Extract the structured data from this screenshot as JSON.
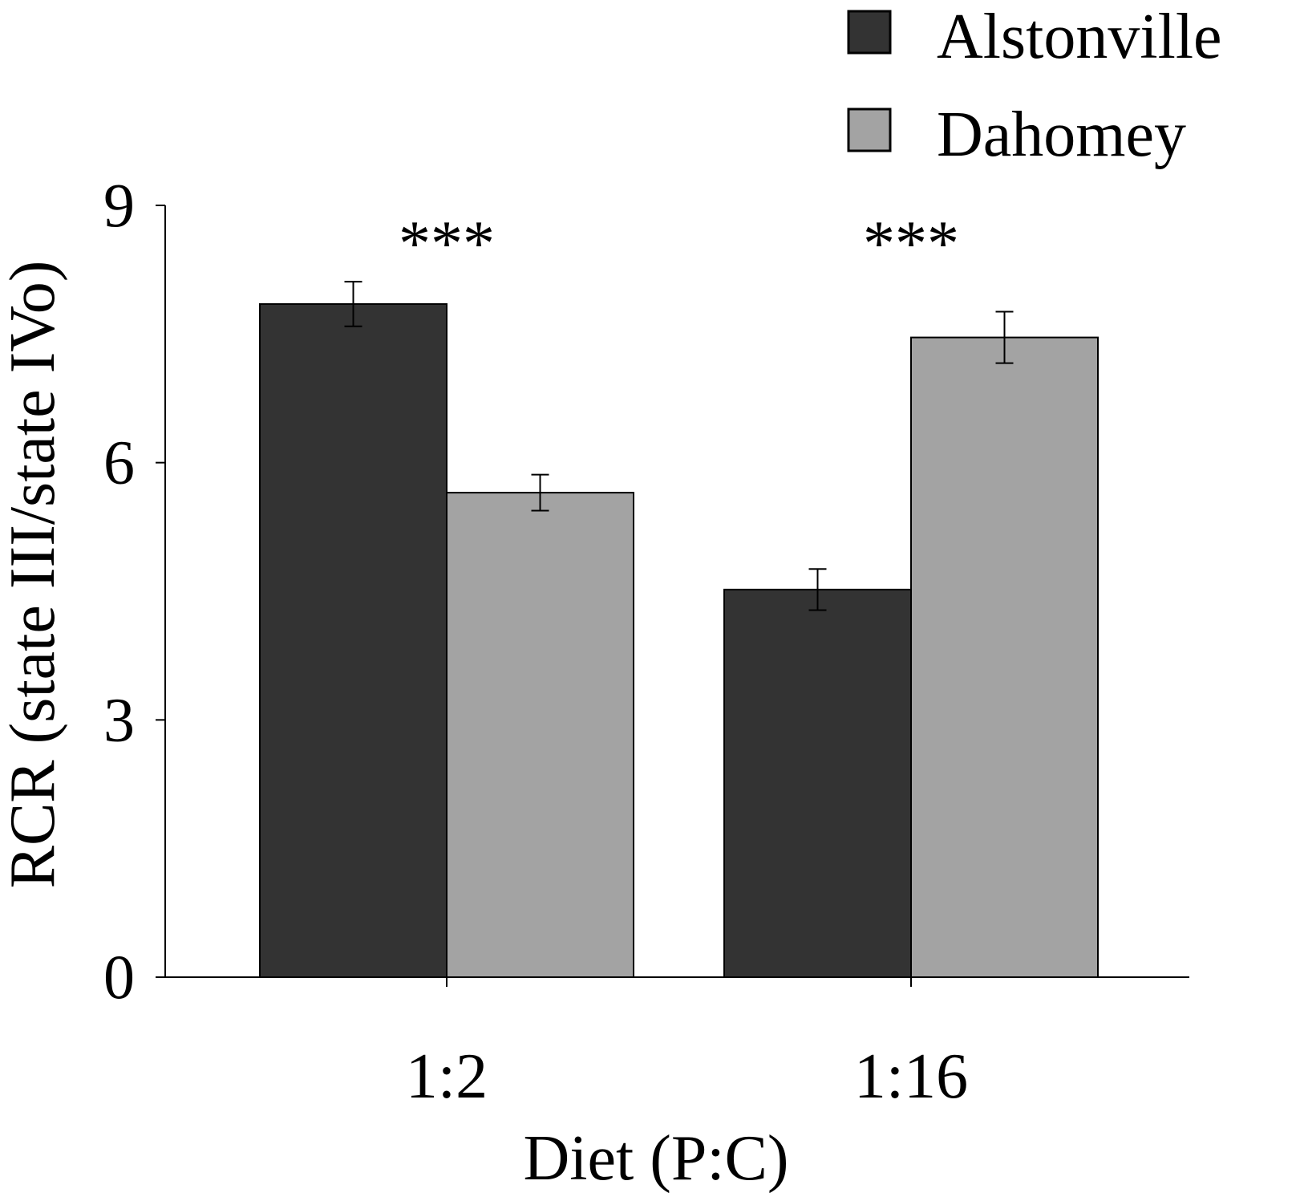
{
  "colors": {
    "alstonville": "#333333",
    "dahomey": "#a3a3a3",
    "axis": "#000000",
    "background": "#ffffff"
  },
  "chart_data": {
    "type": "bar",
    "title": "",
    "xlabel": "Diet (P:C)",
    "ylabel": "RCR (state III/state IVo)",
    "categories": [
      "1:2",
      "1:16"
    ],
    "ylim": [
      0,
      9
    ],
    "yticks": [
      0,
      3,
      6,
      9
    ],
    "ytick_labels": [
      "0",
      "3",
      "6",
      "9"
    ],
    "grid": false,
    "legend_position": "top-right",
    "series": [
      {
        "name": "Alstonville",
        "color": "#333333",
        "values": [
          7.85,
          4.52
        ],
        "errors": [
          0.26,
          0.24
        ]
      },
      {
        "name": "Dahomey",
        "color": "#a3a3a3",
        "values": [
          5.65,
          7.46
        ],
        "errors": [
          0.21,
          0.3
        ]
      }
    ],
    "annotations": [
      {
        "category": "1:2",
        "text": "***"
      },
      {
        "category": "1:16",
        "text": "***"
      }
    ]
  }
}
